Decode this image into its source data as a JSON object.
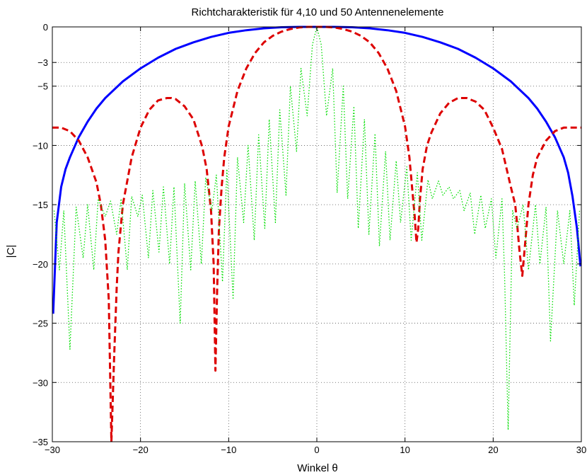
{
  "chart_data": {
    "type": "line",
    "title": "Richtcharakteristik für 4,10 und 50 Antennenelemente",
    "xlabel": "Winkel θ",
    "ylabel": "|C|",
    "xlim": [
      -30,
      30
    ],
    "ylim": [
      -35,
      0
    ],
    "xticks": [
      -30,
      -20,
      -10,
      0,
      10,
      20,
      30
    ],
    "yticks": [
      0,
      -3,
      -5,
      -10,
      -15,
      -20,
      -25,
      -30,
      -35
    ],
    "xtick_labels": [
      "−30",
      "−20",
      "−10",
      "0",
      "10",
      "20",
      "30"
    ],
    "ytick_labels": [
      "0",
      "−3",
      "−5",
      "−10",
      "−15",
      "−20",
      "−25",
      "−30",
      "−35"
    ],
    "grid": true,
    "legend": "none",
    "series": [
      {
        "style": "solid",
        "color": "#0000ff",
        "x": [
          -29.9,
          -29.5,
          -29,
          -28.5,
          -28,
          -27,
          -26,
          -25,
          -24,
          -22,
          -20,
          -18,
          -16,
          -14,
          -12,
          -10,
          -8,
          -6,
          -4,
          -2,
          0,
          2,
          4,
          6,
          8,
          10,
          12,
          14,
          16,
          18,
          20,
          22,
          24,
          25,
          26,
          27,
          28,
          28.5,
          29,
          29.5,
          29.9
        ],
        "y": [
          -24.2,
          -16.5,
          -13.5,
          -12.0,
          -11.0,
          -9.3,
          -8.0,
          -6.9,
          -6.0,
          -4.6,
          -3.5,
          -2.6,
          -1.85,
          -1.3,
          -0.85,
          -0.5,
          -0.28,
          -0.12,
          -0.03,
          0,
          0,
          0,
          -0.03,
          -0.12,
          -0.28,
          -0.5,
          -0.85,
          -1.3,
          -1.85,
          -2.6,
          -3.5,
          -4.6,
          -6.0,
          -6.9,
          -8.0,
          -9.3,
          -11.0,
          -12.3,
          -14.3,
          -17.0,
          -20.2
        ]
      },
      {
        "style": "dashed",
        "color": "#dd0000",
        "x": [
          -30,
          -29,
          -28,
          -27,
          -26,
          -25,
          -24.5,
          -24,
          -23.6,
          -23.3,
          -23,
          -22.7,
          -22.5,
          -22,
          -21,
          -20,
          -19,
          -18,
          -17,
          -16.5,
          -16,
          -15,
          -14,
          -13,
          -12.5,
          -12,
          -11.7,
          -11.5,
          -11.3,
          -11.1,
          -10.8,
          -10.5,
          -10,
          -9,
          -8,
          -7,
          -6,
          -5,
          -4,
          -3,
          -2,
          -1,
          0,
          1,
          2,
          3,
          4,
          5,
          6,
          7,
          8,
          9,
          10,
          10.5,
          10.8,
          11.1,
          11.3,
          11.5,
          11.7,
          12,
          12.5,
          13,
          14,
          15,
          16,
          16.5,
          17,
          18,
          19,
          20,
          21,
          22,
          22.5,
          22.7,
          23,
          23.3,
          23.6,
          24,
          24.5,
          25,
          26,
          27,
          28,
          29,
          30
        ],
        "y": [
          -8.5,
          -8.5,
          -8.8,
          -9.6,
          -11.0,
          -13.1,
          -15.0,
          -18.0,
          -23.0,
          -35,
          -28,
          -22,
          -19.0,
          -15.0,
          -11.0,
          -8.5,
          -7.0,
          -6.2,
          -6.0,
          -6.0,
          -6.1,
          -6.7,
          -7.8,
          -10.1,
          -12.0,
          -15.5,
          -20.0,
          -29.0,
          -22.0,
          -17.0,
          -13.5,
          -11.0,
          -8.4,
          -5.4,
          -3.5,
          -2.2,
          -1.3,
          -0.75,
          -0.4,
          -0.18,
          -0.05,
          0,
          0,
          0,
          -0.05,
          -0.18,
          -0.4,
          -0.75,
          -1.3,
          -2.2,
          -3.5,
          -5.4,
          -8.4,
          -11.0,
          -13.5,
          -16.0,
          -18.2,
          -17.0,
          -14.5,
          -12.0,
          -10.0,
          -8.9,
          -7.3,
          -6.4,
          -6.0,
          -6.0,
          -6.0,
          -6.3,
          -7.0,
          -8.5,
          -10.3,
          -13.5,
          -15.0,
          -16.5,
          -19.0,
          -21.0,
          -18.5,
          -15.0,
          -12.5,
          -11.0,
          -9.6,
          -8.8,
          -8.5,
          -8.5,
          -8.5
        ]
      },
      {
        "style": "dotted",
        "color": "#00dd00",
        "x": [
          -29.8,
          -29.2,
          -28.7,
          -28,
          -27.3,
          -26.5,
          -26,
          -25.3,
          -24.8,
          -24,
          -23.4,
          -22.7,
          -22.2,
          -21.5,
          -21,
          -20.3,
          -19.8,
          -19.1,
          -18.6,
          -17.9,
          -17.4,
          -16.7,
          -16.2,
          -15.5,
          -15,
          -14.3,
          -13.8,
          -13.1,
          -12.6,
          -11.9,
          -11.4,
          -10.7,
          -10.2,
          -9.5,
          -9,
          -8.3,
          -7.8,
          -7.1,
          -6.6,
          -5.9,
          -5.4,
          -4.7,
          -4.2,
          -3.5,
          -3,
          -2.3,
          -1.8,
          -1.1,
          -0.5,
          0,
          0.5,
          1.1,
          1.8,
          2.3,
          3,
          3.5,
          4.2,
          4.7,
          5.4,
          5.9,
          6.6,
          7.1,
          7.8,
          8.3,
          9,
          9.5,
          10.2,
          10.7,
          11.4,
          11.9,
          12.6,
          13.1,
          13.8,
          14.3,
          15,
          15.5,
          16.2,
          16.7,
          17.4,
          17.9,
          18.6,
          19.1,
          19.8,
          20.3,
          21,
          21.3,
          21.7,
          22.2,
          22.7,
          23.4,
          24,
          24.8,
          25.3,
          26,
          26.5,
          27.3,
          28,
          28.7,
          29.2,
          29.8
        ],
        "y": [
          -15.5,
          -20.5,
          -15.5,
          -27.2,
          -15.2,
          -19.5,
          -15.0,
          -20.5,
          -14.5,
          -16.0,
          -14.7,
          -17.5,
          -14.5,
          -20.5,
          -14.3,
          -16.0,
          -14.2,
          -19.5,
          -13.8,
          -19.0,
          -13.5,
          -20.0,
          -13.5,
          -25.0,
          -13.2,
          -20.5,
          -13.0,
          -20.0,
          -12.7,
          -15.5,
          -12.5,
          -21.5,
          -12.0,
          -23.0,
          -11.0,
          -16.5,
          -10.0,
          -18.0,
          -9.1,
          -17.0,
          -7.8,
          -16.5,
          -7.0,
          -14.2,
          -5.0,
          -10.5,
          -3.5,
          -7.5,
          -1.5,
          0,
          -1.5,
          -7.5,
          -3.5,
          -14.0,
          -5.0,
          -14.5,
          -6.7,
          -17.0,
          -7.8,
          -17.5,
          -9.0,
          -18.5,
          -10.5,
          -18.0,
          -11.3,
          -16.5,
          -11.8,
          -18.0,
          -12.3,
          -18.0,
          -12.9,
          -14.5,
          -13.0,
          -14.2,
          -13.5,
          -14.5,
          -13.8,
          -15.5,
          -14.0,
          -17.5,
          -14.2,
          -17.0,
          -14.5,
          -19.5,
          -14.5,
          -21.0,
          -34.0,
          -15.5,
          -17.0,
          -15.0,
          -20.5,
          -15.0,
          -20.0,
          -15.2,
          -26.5,
          -15.5,
          -20.0,
          -15.5,
          -23.5,
          -15.5
        ]
      }
    ]
  }
}
